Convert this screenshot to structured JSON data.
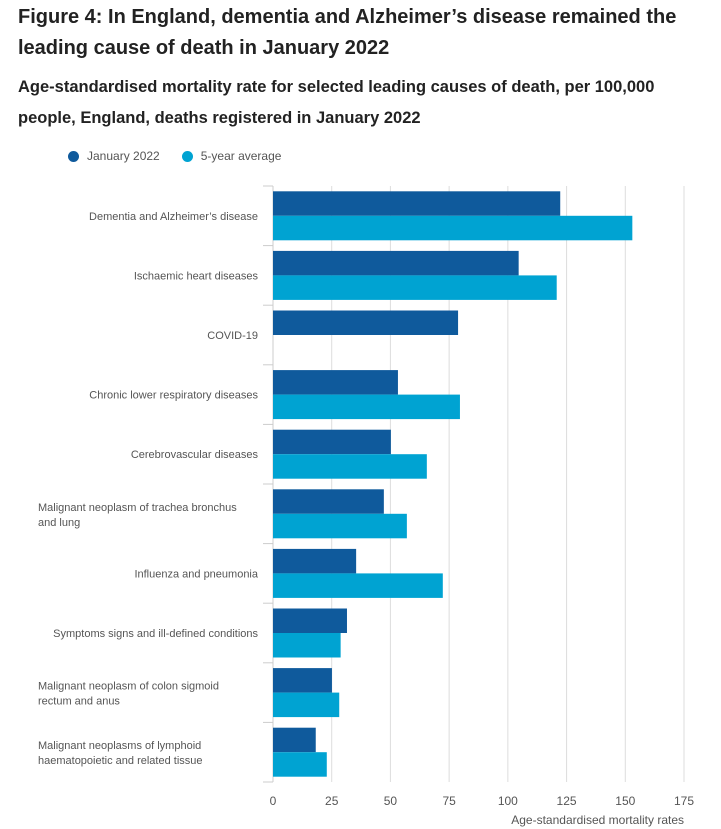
{
  "figure": {
    "title": "Figure 4: In England, dementia and Alzheimer’s disease remained the leading cause of death in January 2022",
    "subtitle": "Age-standardised mortality rate for selected leading causes of death, per 100,000 people, England, deaths registered in January 2022"
  },
  "colors": {
    "january_2022": "#0f5a9c",
    "five_year_average": "#00a3d2",
    "grid": "#dddddd",
    "axis_text": "#555555"
  },
  "chart_data": {
    "type": "bar",
    "orientation": "horizontal",
    "title": "Age-standardised mortality rate for selected leading causes of death, per 100,000 people, England, deaths registered in January 2022",
    "xlabel": "Age-standardised mortality rates",
    "ylabel": "",
    "xlim": [
      0,
      175
    ],
    "xticks": [
      0,
      25,
      50,
      75,
      100,
      125,
      150,
      175
    ],
    "grid": true,
    "legend_position": "top-left",
    "categories": [
      "Dementia and Alzheimer’s disease",
      "Ischaemic heart diseases",
      "COVID-19",
      "Chronic lower respiratory diseases",
      "Cerebrovascular diseases",
      "Malignant neoplasm of trachea bronchus and lung",
      "Influenza and pneumonia",
      "Symptoms signs and ill-defined conditions",
      "Malignant neoplasm of colon sigmoid rectum and anus",
      "Malignant neoplasms of lymphoid haematopoietic and related tissue"
    ],
    "category_label_lines": [
      [
        "Dementia and Alzheimer’s disease"
      ],
      [
        "Ischaemic heart diseases"
      ],
      [
        "COVID-19"
      ],
      [
        "Chronic lower respiratory diseases"
      ],
      [
        "Cerebrovascular diseases"
      ],
      [
        "Malignant neoplasm of trachea bronchus",
        "and lung"
      ],
      [
        "Influenza and pneumonia"
      ],
      [
        "Symptoms signs and ill-defined conditions"
      ],
      [
        "Malignant neoplasm of colon sigmoid",
        "rectum and anus"
      ],
      [
        "Malignant neoplasms of lymphoid",
        "haematopoietic and related tissue"
      ]
    ],
    "series": [
      {
        "name": "January 2022",
        "color_key": "january_2022",
        "values": [
          122.3,
          104.6,
          78.8,
          53.2,
          50.2,
          47.2,
          35.4,
          31.5,
          25.1,
          18.2
        ]
      },
      {
        "name": "5-year average",
        "color_key": "five_year_average",
        "values": [
          153.0,
          120.8,
          null,
          79.6,
          65.5,
          57.0,
          72.3,
          28.8,
          28.2,
          22.9
        ]
      }
    ]
  }
}
